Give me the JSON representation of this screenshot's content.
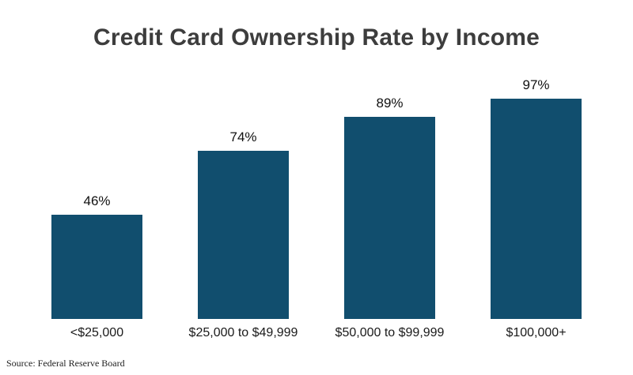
{
  "title": "Credit Card Ownership Rate by Income",
  "source": "Source: Federal Reserve Board",
  "colors": {
    "bar": "#114e6e",
    "title": "#3d3d3d",
    "label": "#111111"
  },
  "chart_data": {
    "type": "bar",
    "categories": [
      "<$25,000",
      "$25,000 to $49,999",
      "$50,000 to $99,999",
      "$100,000+"
    ],
    "values": [
      46,
      74,
      89,
      97
    ],
    "value_labels": [
      "46%",
      "74%",
      "89%",
      "97%"
    ],
    "title": "Credit Card Ownership Rate by Income",
    "xlabel": "",
    "ylabel": "",
    "ylim": [
      0,
      100
    ],
    "grid": false,
    "legend": false,
    "bar_color": "#114e6e"
  }
}
